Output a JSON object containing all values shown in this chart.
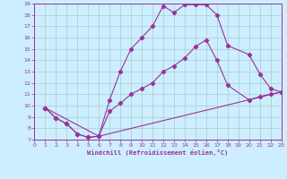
{
  "xlabel": "Windchill (Refroidissement éolien,°C)",
  "bg_color": "#cceeff",
  "line_color": "#993399",
  "grid_color": "#aacccc",
  "series1_x": [
    1,
    2,
    3,
    4,
    5,
    6,
    7,
    8,
    9,
    10,
    11,
    12,
    13,
    14,
    15,
    16,
    17,
    18,
    20,
    21,
    22,
    23
  ],
  "series1_y": [
    9.8,
    8.9,
    8.4,
    7.5,
    7.2,
    7.3,
    10.5,
    13.0,
    15.0,
    16.0,
    17.0,
    18.8,
    18.2,
    18.9,
    18.9,
    18.9,
    18.0,
    15.3,
    14.5,
    12.8,
    11.5,
    11.2
  ],
  "series2_x": [
    1,
    2,
    3,
    4,
    5,
    6,
    7,
    8,
    9,
    10,
    11,
    12,
    13,
    14,
    15,
    16,
    17,
    18,
    20,
    21,
    22,
    23
  ],
  "series2_y": [
    9.8,
    8.9,
    8.4,
    7.5,
    7.2,
    7.3,
    9.5,
    10.2,
    11.0,
    11.5,
    12.0,
    13.0,
    13.5,
    14.2,
    15.2,
    15.8,
    14.0,
    11.8,
    10.5,
    10.8,
    11.0,
    11.2
  ],
  "series3_x": [
    1,
    6,
    23
  ],
  "series3_y": [
    9.8,
    7.3,
    11.2
  ],
  "xlim": [
    0,
    23
  ],
  "ylim": [
    7,
    19
  ],
  "xticks": [
    0,
    1,
    2,
    3,
    4,
    5,
    6,
    7,
    8,
    9,
    10,
    11,
    12,
    13,
    14,
    15,
    16,
    17,
    18,
    19,
    20,
    21,
    22,
    23
  ],
  "yticks": [
    7,
    8,
    9,
    10,
    11,
    12,
    13,
    14,
    15,
    16,
    17,
    18,
    19
  ]
}
